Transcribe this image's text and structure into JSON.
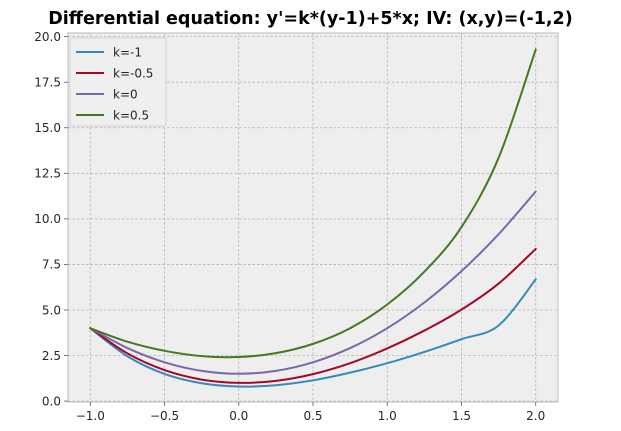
{
  "chart_data": {
    "type": "line",
    "title": "Differential equation: y'=k*(y-1)+5*x; IV: (x,y)=(-1,2)",
    "xlabel": "",
    "ylabel": "",
    "xlim": [
      -1.15,
      2.15
    ],
    "ylim": [
      -0.05,
      20.2
    ],
    "x_ticks": [
      -1.0,
      -0.5,
      0.0,
      0.5,
      1.0,
      1.5,
      2.0
    ],
    "x_tick_labels": [
      "−1.0",
      "−0.5",
      "0.0",
      "0.5",
      "1.0",
      "1.5",
      "2.0"
    ],
    "y_ticks": [
      0.0,
      2.5,
      5.0,
      7.5,
      10.0,
      12.5,
      15.0,
      17.5,
      20.0
    ],
    "y_tick_labels": [
      "0.0",
      "2.5",
      "5.0",
      "7.5",
      "10.0",
      "12.5",
      "15.0",
      "17.5",
      "20.0"
    ],
    "grid": true,
    "legend_position": "top-left",
    "x": [
      -1.0,
      -0.75,
      -0.5,
      -0.25,
      0.0,
      0.25,
      0.5,
      0.75,
      1.0,
      1.25,
      1.5,
      1.75,
      2.0
    ],
    "series": [
      {
        "name": "k=-1",
        "color": "#348abd",
        "values": [
          4.0,
          2.46,
          1.49,
          0.98,
          0.8,
          0.87,
          1.14,
          1.56,
          2.08,
          2.7,
          3.4,
          4.15,
          6.68
        ]
      },
      {
        "name": "k=-0.5",
        "color": "#a60628",
        "values": [
          4.0,
          2.62,
          1.7,
          1.18,
          1.0,
          1.11,
          1.48,
          2.08,
          2.89,
          3.87,
          5.02,
          6.45,
          8.35
        ]
      },
      {
        "name": "k=0",
        "color": "#7a68a6",
        "values": [
          4.0,
          2.91,
          2.13,
          1.66,
          1.5,
          1.66,
          2.13,
          2.91,
          4.0,
          5.41,
          7.13,
          9.16,
          11.5
        ]
      },
      {
        "name": "k=0.5",
        "color": "#467821",
        "values": [
          4.0,
          3.26,
          2.76,
          2.47,
          2.42,
          2.63,
          3.14,
          4.0,
          5.3,
          7.1,
          9.55,
          13.35,
          19.3
        ]
      }
    ]
  }
}
